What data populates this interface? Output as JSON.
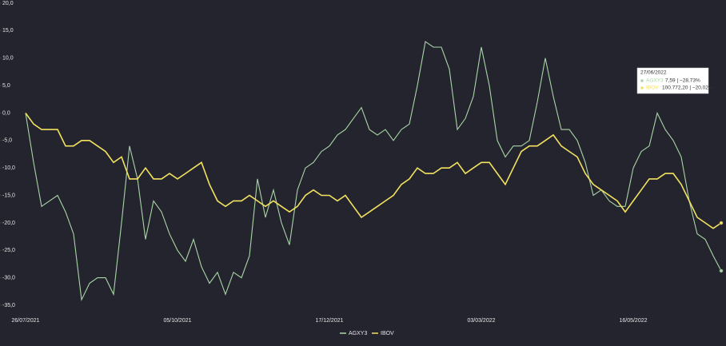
{
  "chart_data": {
    "type": "line",
    "categories": [
      "26/07/2021",
      null,
      null,
      null,
      null,
      null,
      null,
      null,
      null,
      null,
      null,
      null,
      null,
      null,
      null,
      null,
      null,
      null,
      null,
      "05/10/2021",
      null,
      null,
      null,
      null,
      null,
      null,
      null,
      null,
      null,
      null,
      null,
      null,
      null,
      null,
      null,
      null,
      null,
      null,
      "17/12/2021",
      null,
      null,
      null,
      null,
      null,
      null,
      null,
      null,
      null,
      null,
      null,
      null,
      null,
      null,
      null,
      null,
      null,
      null,
      "03/03/2022",
      null,
      null,
      null,
      null,
      null,
      null,
      null,
      null,
      null,
      null,
      null,
      null,
      null,
      null,
      null,
      null,
      null,
      null,
      "16/05/2022",
      null,
      null,
      null,
      null,
      null,
      null,
      null,
      null,
      null,
      null,
      null
    ],
    "series": [
      {
        "name": "AGXY3",
        "color": "#a9d6a6",
        "values": [
          0,
          -9,
          -17,
          -16,
          -15,
          -18,
          -22,
          -34,
          -31,
          -30,
          -30,
          -33,
          -20,
          -6,
          -12,
          -23,
          -16,
          -18,
          -22,
          -25,
          -27,
          -23,
          -28,
          -31,
          -29,
          -33,
          -29,
          -30,
          -26,
          -12,
          -19,
          -14,
          -20,
          -24,
          -14,
          -10,
          -9,
          -7,
          -6,
          -4,
          -3,
          -1,
          1,
          -3,
          -4,
          -3,
          -5,
          -3,
          -2,
          5,
          13,
          12,
          12,
          8,
          -3,
          -1,
          3,
          12,
          5,
          -5,
          -8,
          -6,
          -6,
          -5,
          2,
          10,
          3,
          -3,
          -3,
          -5,
          -9,
          -15,
          -14,
          -16,
          -17,
          -17,
          -10,
          -7,
          -6,
          0,
          -3,
          -5,
          -8,
          -16,
          -22,
          -23,
          -26,
          -28.73
        ]
      },
      {
        "name": "IBOV",
        "color": "#f3e25e",
        "values": [
          0,
          -2,
          -3,
          -3,
          -3,
          -6,
          -6,
          -5,
          -5,
          -6,
          -7,
          -9,
          -8,
          -12,
          -12,
          -10,
          -12,
          -12,
          -11,
          -12,
          -11,
          -10,
          -9,
          -13,
          -16,
          -17,
          -16,
          -16,
          -15,
          -16,
          -17,
          -16,
          -17,
          -18,
          -17,
          -15,
          -14,
          -15,
          -15,
          -16,
          -15,
          -17,
          -19,
          -18,
          -17,
          -16,
          -15,
          -13,
          -12,
          -10,
          -11,
          -11,
          -10,
          -10,
          -9,
          -11,
          -10,
          -9,
          -9,
          -11,
          -13,
          -10,
          -7,
          -6,
          -6,
          -5,
          -4,
          -6,
          -7,
          -8,
          -11,
          -13,
          -14,
          -15,
          -16,
          -18,
          -16,
          -14,
          -12,
          -12,
          -11,
          -11,
          -13,
          -16,
          -19,
          -20,
          -21,
          -20.02
        ]
      }
    ],
    "ylim": [
      -35,
      20
    ],
    "yticks": [
      {
        "value": 20,
        "label": "20,0"
      },
      {
        "value": 15,
        "label": "15,0"
      },
      {
        "value": 10,
        "label": "10,0"
      },
      {
        "value": 5,
        "label": "5,0"
      },
      {
        "value": 0,
        "label": "0,0"
      },
      {
        "value": -5,
        "label": "-5,0"
      },
      {
        "value": -10,
        "label": "-10,0"
      },
      {
        "value": -15,
        "label": "-15,0"
      },
      {
        "value": -20,
        "label": "-20,0"
      },
      {
        "value": -25,
        "label": "-25,0"
      },
      {
        "value": -30,
        "label": "-30,0"
      },
      {
        "value": -35,
        "label": "-35,0"
      }
    ],
    "grid": false,
    "legend": "bottom",
    "tooltip": {
      "date": "27/06/2022",
      "entries": [
        "7,59 | −28,73%",
        "100.772,20 | −20,02%"
      ]
    }
  }
}
